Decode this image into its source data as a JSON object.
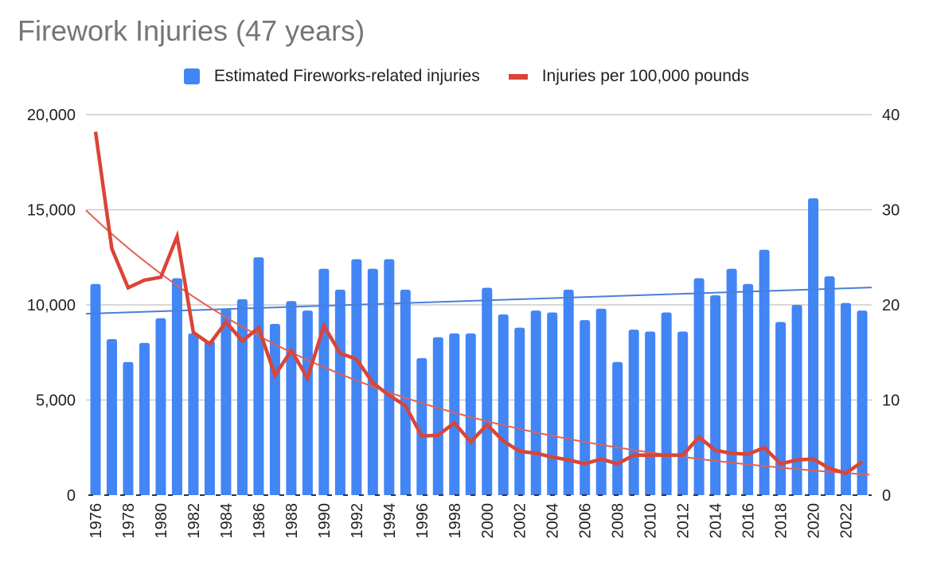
{
  "chart_data": {
    "type": "bar",
    "title": "Firework Injuries (47 years)",
    "xlabel": "",
    "ylabel_left": "",
    "ylabel_right": "",
    "legend_position": "top",
    "grid": true,
    "categories": [
      1976,
      1977,
      1978,
      1979,
      1980,
      1981,
      1982,
      1983,
      1984,
      1985,
      1986,
      1987,
      1988,
      1989,
      1990,
      1991,
      1992,
      1993,
      1994,
      1995,
      1996,
      1997,
      1998,
      1999,
      2000,
      2001,
      2002,
      2003,
      2004,
      2005,
      2006,
      2007,
      2008,
      2009,
      2010,
      2011,
      2012,
      2013,
      2014,
      2015,
      2016,
      2017,
      2018,
      2019,
      2020,
      2021,
      2022,
      2023
    ],
    "x_tick_labels": [
      "1976",
      "1978",
      "1980",
      "1982",
      "1984",
      "1986",
      "1988",
      "1990",
      "1992",
      "1994",
      "1996",
      "1998",
      "2000",
      "2002",
      "2004",
      "2006",
      "2008",
      "2010",
      "2012",
      "2014",
      "2016",
      "2018",
      "2020",
      "2022"
    ],
    "y_left": {
      "range": [
        0,
        20000
      ],
      "ticks": [
        0,
        5000,
        10000,
        15000,
        20000
      ],
      "tick_labels": [
        "0",
        "5,000",
        "10,000",
        "15,000",
        "20,000"
      ]
    },
    "y_right": {
      "range": [
        0,
        40
      ],
      "ticks": [
        0,
        10,
        20,
        30,
        40
      ],
      "tick_labels": [
        "0",
        "10",
        "20",
        "30",
        "40"
      ]
    },
    "series": [
      {
        "name": "Estimated Fireworks-related injuries",
        "type": "bar",
        "axis": "left",
        "color": "#4285f4",
        "values": [
          11100,
          8200,
          7000,
          8000,
          9300,
          11400,
          8500,
          8100,
          9800,
          10300,
          12500,
          9000,
          10200,
          9700,
          11900,
          10800,
          12400,
          11900,
          12400,
          10800,
          7200,
          8300,
          8500,
          8500,
          10900,
          9500,
          8800,
          9700,
          9600,
          10800,
          9200,
          9800,
          7000,
          8700,
          8600,
          9600,
          8600,
          11400,
          10500,
          11900,
          11100,
          12900,
          9100,
          10000,
          15600,
          11500,
          10100,
          9700
        ],
        "trendline": {
          "type": "linear",
          "color": "#4a7fd9",
          "start": 9550,
          "end": 10900
        }
      },
      {
        "name": "Injuries per 100,000 pounds",
        "type": "line",
        "axis": "right",
        "color": "#db4437",
        "values": [
          38.2,
          25.9,
          21.8,
          22.6,
          22.9,
          27.2,
          17.1,
          15.9,
          18.2,
          16.2,
          17.6,
          12.6,
          15.2,
          12.3,
          17.8,
          14.9,
          14.3,
          11.8,
          10.5,
          9.4,
          6.2,
          6.3,
          7.6,
          5.6,
          7.4,
          5.7,
          4.6,
          4.4,
          4.0,
          3.7,
          3.3,
          3.8,
          3.3,
          4.2,
          4.2,
          4.2,
          4.2,
          6.1,
          4.7,
          4.4,
          4.3,
          5.0,
          3.3,
          3.7,
          3.8,
          2.8,
          2.3,
          3.5
        ],
        "trendline": {
          "type": "exponential",
          "color": "#e06155",
          "start": 29.0,
          "end": 2.2
        }
      }
    ]
  }
}
